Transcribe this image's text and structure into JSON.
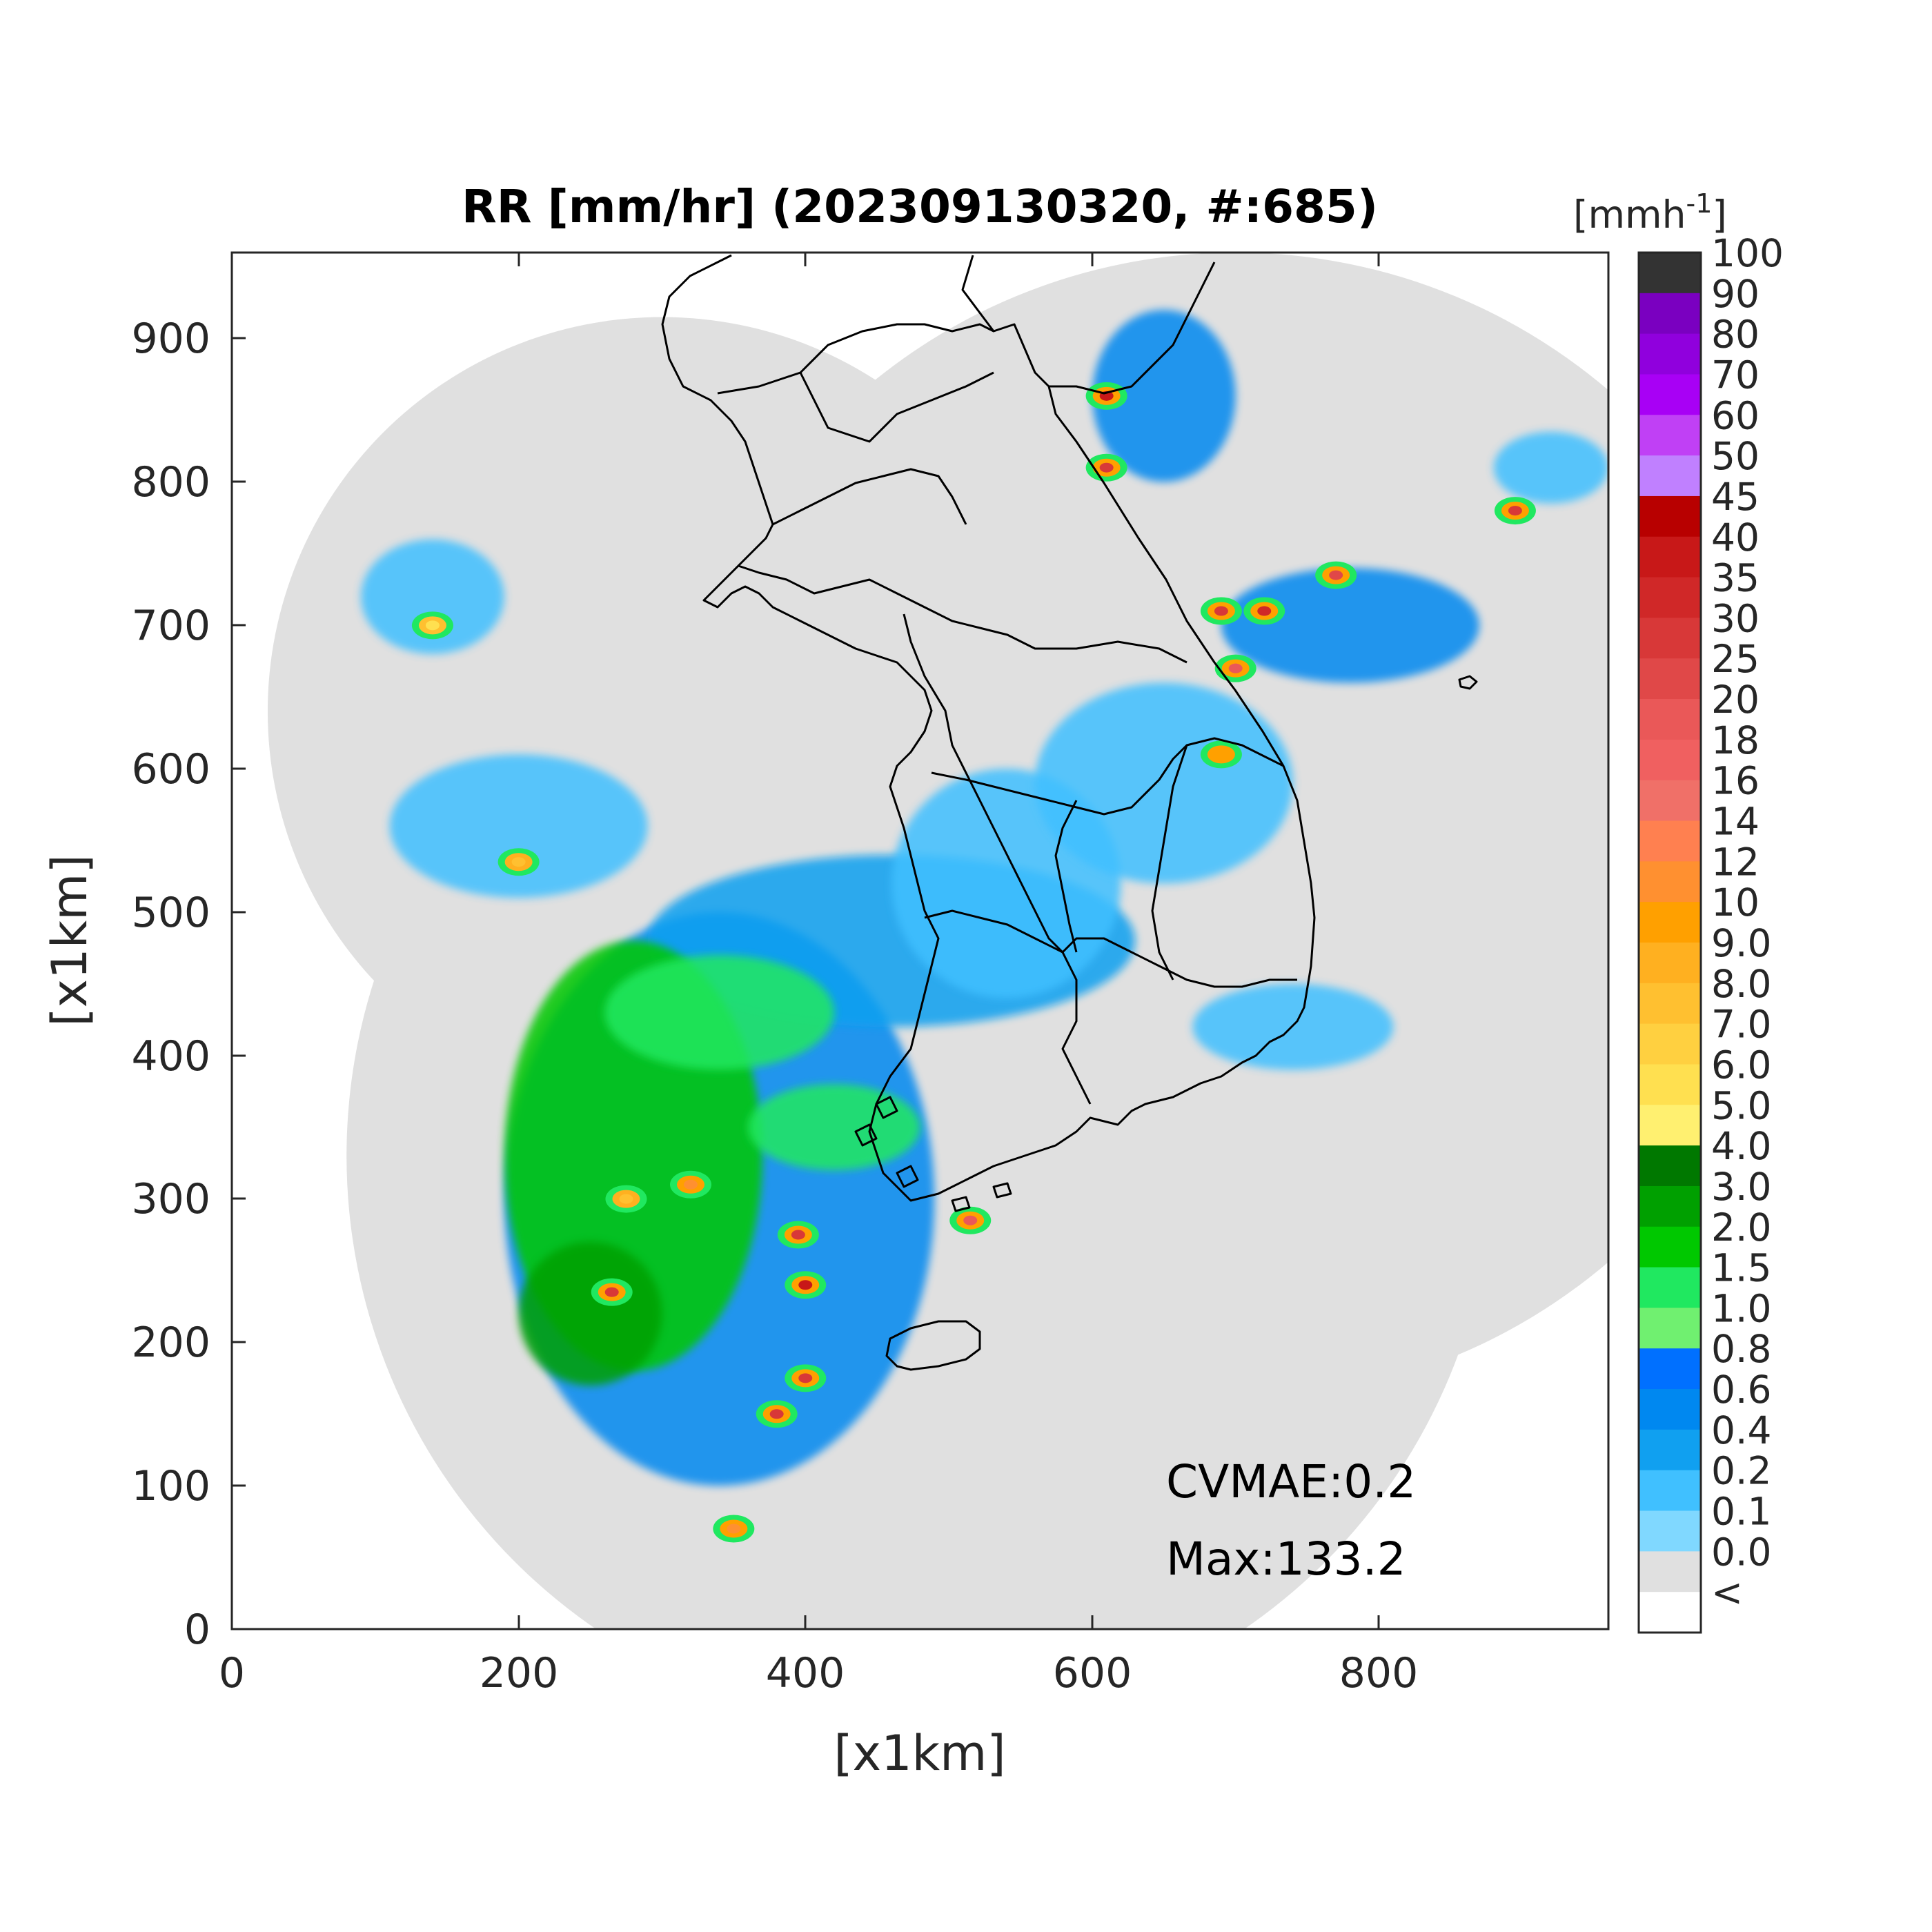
{
  "title": "RR [mm/hr] (202309130320, #:685)",
  "xlabel": "[x1km]",
  "ylabel": "[x1km]",
  "x_ticks": [
    "0",
    "200",
    "400",
    "600",
    "800"
  ],
  "y_ticks": [
    "0",
    "100",
    "200",
    "300",
    "400",
    "500",
    "600",
    "700",
    "800",
    "900"
  ],
  "colorbar": {
    "unit_label": "[mmh",
    "unit_sup": "-1",
    "unit_close": "]",
    "levels": [
      "100",
      "90",
      "80",
      "70",
      "60",
      "50",
      "45",
      "40",
      "35",
      "30",
      "25",
      "20",
      "18",
      "16",
      "14",
      "12",
      "10",
      "9.0",
      "8.0",
      "7.0",
      "6.0",
      "5.0",
      "4.0",
      "3.0",
      "2.0",
      "1.5",
      "1.0",
      "0.8",
      "0.6",
      "0.4",
      "0.2",
      "0.1",
      "0.0",
      "<"
    ],
    "colors": [
      "#333333",
      "#7a00c0",
      "#9000dd",
      "#a800f5",
      "#c040f5",
      "#c080ff",
      "#b80000",
      "#c81818",
      "#d02828",
      "#d83838",
      "#e04848",
      "#ea5858",
      "#f06060",
      "#f07068",
      "#ff8050",
      "#ff9030",
      "#ffa000",
      "#ffb020",
      "#ffc030",
      "#ffd040",
      "#ffe050",
      "#fff070",
      "#007800",
      "#00a000",
      "#00c800",
      "#20e860",
      "#70f070",
      "#0070ff",
      "#0088f0",
      "#10a0f0",
      "#40c0ff",
      "#80d8ff",
      "#e0e0e0",
      "#ffffff"
    ]
  },
  "annotations": {
    "cvmae": "CVMAE:0.2",
    "max": "Max:133.2"
  },
  "chart_data": {
    "type": "heatmap",
    "title": "RR [mm/hr] (202309130320, #:685)",
    "xlabel": "[x1km]",
    "ylabel": "[x1km]",
    "xlim": [
      0,
      960
    ],
    "ylim": [
      0,
      960
    ],
    "xticks": [
      0,
      200,
      400,
      600,
      800
    ],
    "yticks": [
      0,
      100,
      200,
      300,
      400,
      500,
      600,
      700,
      800,
      900
    ],
    "colorbar_unit": "[mmh-1]",
    "CVMAE": 0.2,
    "Max": 133.2,
    "radar_coverage_circles": [
      {
        "cx": 300,
        "cy": 640,
        "r": 275
      },
      {
        "cx": 700,
        "cy": 560,
        "r": 400
      },
      {
        "cx": 480,
        "cy": 330,
        "r": 400
      }
    ],
    "rain_regions": [
      {
        "cx": 340,
        "cy": 300,
        "rx": 150,
        "ry": 200,
        "rate": 0.6
      },
      {
        "cx": 460,
        "cy": 480,
        "rx": 170,
        "ry": 60,
        "rate": 0.4
      },
      {
        "cx": 540,
        "cy": 520,
        "rx": 80,
        "ry": 80,
        "rate": 0.3
      },
      {
        "cx": 650,
        "cy": 590,
        "rx": 90,
        "ry": 70,
        "rate": 0.3
      },
      {
        "cx": 740,
        "cy": 420,
        "rx": 70,
        "ry": 30,
        "rate": 0.3
      },
      {
        "cx": 780,
        "cy": 700,
        "rx": 90,
        "ry": 40,
        "rate": 0.6
      },
      {
        "cx": 650,
        "cy": 860,
        "rx": 50,
        "ry": 60,
        "rate": 0.6
      },
      {
        "cx": 200,
        "cy": 560,
        "rx": 90,
        "ry": 50,
        "rate": 0.3
      },
      {
        "cx": 140,
        "cy": 720,
        "rx": 50,
        "ry": 40,
        "rate": 0.3
      },
      {
        "cx": 920,
        "cy": 810,
        "rx": 40,
        "ry": 25,
        "rate": 0.3
      }
    ],
    "moderate_rain_regions": [
      {
        "cx": 280,
        "cy": 330,
        "rx": 90,
        "ry": 150,
        "rate": 2.0
      },
      {
        "cx": 340,
        "cy": 430,
        "rx": 80,
        "ry": 40,
        "rate": 1.5
      },
      {
        "cx": 250,
        "cy": 220,
        "rx": 50,
        "ry": 50,
        "rate": 3.0
      },
      {
        "cx": 420,
        "cy": 350,
        "rx": 60,
        "ry": 30,
        "rate": 1.5
      }
    ],
    "heavy_rain_cells": [
      {
        "x": 610,
        "y": 860,
        "rate": 40
      },
      {
        "x": 610,
        "y": 810,
        "rate": 30
      },
      {
        "x": 690,
        "y": 710,
        "rate": 30
      },
      {
        "x": 770,
        "y": 735,
        "rate": 25
      },
      {
        "x": 720,
        "y": 710,
        "rate": 35
      },
      {
        "x": 700,
        "y": 670,
        "rate": 20
      },
      {
        "x": 690,
        "y": 610,
        "rate": 10
      },
      {
        "x": 320,
        "y": 310,
        "rate": 12
      },
      {
        "x": 275,
        "y": 300,
        "rate": 8
      },
      {
        "x": 400,
        "y": 240,
        "rate": 40
      },
      {
        "x": 395,
        "y": 275,
        "rate": 30
      },
      {
        "x": 265,
        "y": 235,
        "rate": 30
      },
      {
        "x": 515,
        "y": 285,
        "rate": 20
      },
      {
        "x": 400,
        "y": 175,
        "rate": 30
      },
      {
        "x": 380,
        "y": 150,
        "rate": 30
      },
      {
        "x": 350,
        "y": 70,
        "rate": 12
      },
      {
        "x": 200,
        "y": 535,
        "rate": 8
      },
      {
        "x": 140,
        "y": 700,
        "rate": 6
      },
      {
        "x": 895,
        "y": 780,
        "rate": 30
      }
    ]
  }
}
